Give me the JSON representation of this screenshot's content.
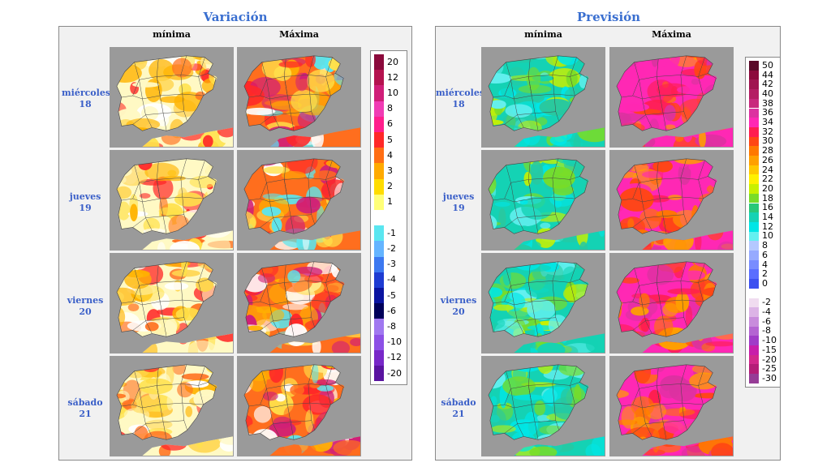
{
  "variacion": {
    "title": "Variación",
    "columns": [
      "mínima",
      "Máxima"
    ],
    "days": [
      {
        "name": "miércoles",
        "num": "18"
      },
      {
        "name": "jueves",
        "num": "19"
      },
      {
        "name": "viernes",
        "num": "20"
      },
      {
        "name": "sábado",
        "num": "21"
      }
    ],
    "legend": [
      {
        "label": "20",
        "color": "#8b0a3c"
      },
      {
        "label": "12",
        "color": "#b4124e"
      },
      {
        "label": "10",
        "color": "#d01e78"
      },
      {
        "label": "8",
        "color": "#f03cb4"
      },
      {
        "label": "6",
        "color": "#ff1e8c"
      },
      {
        "label": "5",
        "color": "#ff2828"
      },
      {
        "label": "4",
        "color": "#ff6e14"
      },
      {
        "label": "3",
        "color": "#ffaa00"
      },
      {
        "label": "2",
        "color": "#ffdc00"
      },
      {
        "label": "1",
        "color": "#ffff78"
      },
      {
        "label": "",
        "color": "#ffffff"
      },
      {
        "label": "-1",
        "color": "#5ae6f0"
      },
      {
        "label": "-2",
        "color": "#64b4ff"
      },
      {
        "label": "-3",
        "color": "#3c78f0"
      },
      {
        "label": "-4",
        "color": "#1e3cd2"
      },
      {
        "label": "-5",
        "color": "#0a14a0"
      },
      {
        "label": "-6",
        "color": "#00005a"
      },
      {
        "label": "-8",
        "color": "#a078f0"
      },
      {
        "label": "-10",
        "color": "#8c50e6"
      },
      {
        "label": "-12",
        "color": "#7828c8"
      },
      {
        "label": "-20",
        "color": "#5a14a0"
      }
    ]
  },
  "prevision": {
    "title": "Previsión",
    "columns": [
      "mínima",
      "Máxima"
    ],
    "days": [
      {
        "name": "miércoles",
        "num": "18"
      },
      {
        "name": "jueves",
        "num": "19"
      },
      {
        "name": "viernes",
        "num": "20"
      },
      {
        "name": "sábado",
        "num": "21"
      }
    ],
    "legend": [
      {
        "label": "50",
        "color": "#5a0a28"
      },
      {
        "label": "44",
        "color": "#8c0a3c"
      },
      {
        "label": "42",
        "color": "#a01450"
      },
      {
        "label": "40",
        "color": "#b41e64"
      },
      {
        "label": "38",
        "color": "#c8287d"
      },
      {
        "label": "36",
        "color": "#dc32a0"
      },
      {
        "label": "34",
        "color": "#ff28b4"
      },
      {
        "label": "32",
        "color": "#ff1e50"
      },
      {
        "label": "30",
        "color": "#ff4614"
      },
      {
        "label": "28",
        "color": "#ff7800"
      },
      {
        "label": "26",
        "color": "#ffa000"
      },
      {
        "label": "24",
        "color": "#ffc800"
      },
      {
        "label": "22",
        "color": "#fff000"
      },
      {
        "label": "20",
        "color": "#c8f000"
      },
      {
        "label": "18",
        "color": "#78dc28"
      },
      {
        "label": "16",
        "color": "#28c878"
      },
      {
        "label": "14",
        "color": "#14d2b4"
      },
      {
        "label": "12",
        "color": "#00e6e6"
      },
      {
        "label": "10",
        "color": "#64f0f0"
      },
      {
        "label": "8",
        "color": "#b4c8ff"
      },
      {
        "label": "6",
        "color": "#96aaff"
      },
      {
        "label": "4",
        "color": "#788cff"
      },
      {
        "label": "2",
        "color": "#5a6eff"
      },
      {
        "label": "0",
        "color": "#3c50f0"
      },
      {
        "label": "",
        "color": "#ffffff"
      },
      {
        "label": "-2",
        "color": "#f0dcf0"
      },
      {
        "label": "-4",
        "color": "#dcb4e6"
      },
      {
        "label": "-6",
        "color": "#c88cdc"
      },
      {
        "label": "-8",
        "color": "#b464d2"
      },
      {
        "label": "-10",
        "color": "#a03cc8"
      },
      {
        "label": "-15",
        "color": "#c81eaa"
      },
      {
        "label": "-20",
        "color": "#d2288c"
      },
      {
        "label": "-25",
        "color": "#b41e78"
      },
      {
        "label": "-30",
        "color": "#963c96"
      }
    ]
  },
  "map_palettes": {
    "var_min": [
      "#fff9c4",
      "#ffe14a",
      "#ffb300",
      "#ff6f1e",
      "#ffffff",
      "#ff2828",
      "#ffd54f"
    ],
    "var_max": [
      "#ff6e1e",
      "#ffb300",
      "#ffe14a",
      "#ff2828",
      "#d01e78",
      "#ffffff",
      "#5ae6f0"
    ],
    "prev_min": [
      "#14d2b4",
      "#28c8a0",
      "#00e6e6",
      "#78dc28",
      "#c8f000",
      "#64f0f0"
    ],
    "prev_max": [
      "#ff28b4",
      "#dc32a0",
      "#ff4614",
      "#ff7800",
      "#ffa000",
      "#ff1e50"
    ],
    "land_gray": "#9a9a9a",
    "border": "#444444"
  }
}
